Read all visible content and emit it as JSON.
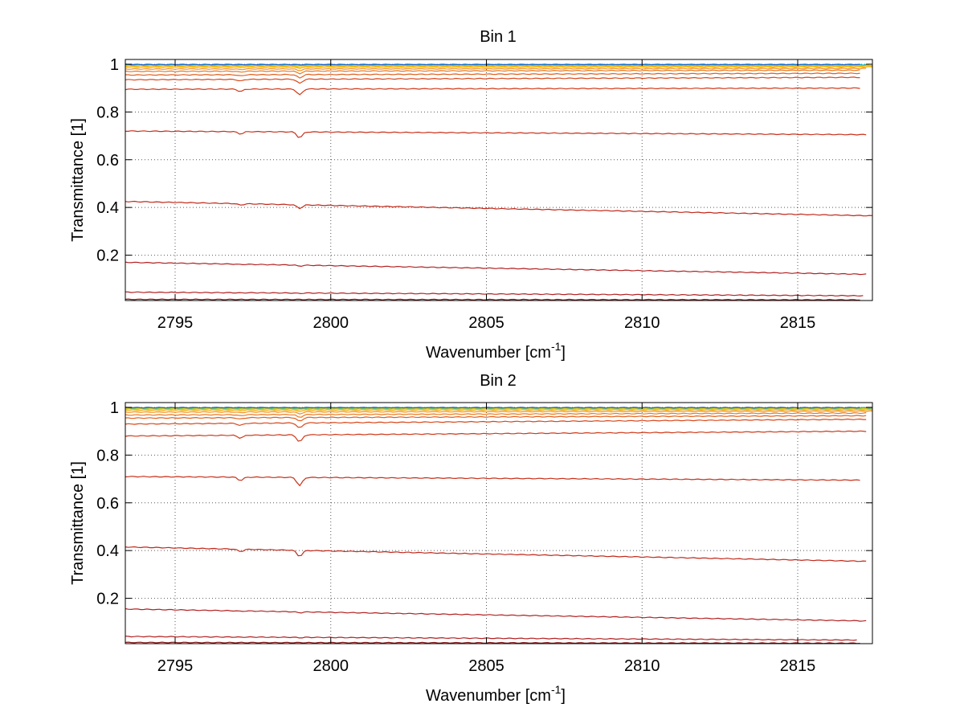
{
  "chart_data": [
    {
      "type": "line",
      "title": "Bin 1",
      "xlabel": "Wavenumber [cm",
      "xlabel_sup": "-1",
      "xlabel_tail": "]",
      "ylabel": "Transmittance [1]",
      "xlim": [
        2793.4,
        2817.4
      ],
      "ylim": [
        0.01,
        1.02
      ],
      "xticks": [
        2795,
        2800,
        2805,
        2810,
        2815
      ],
      "xtick_labels": [
        "2795",
        "2800",
        "2805",
        "2810",
        "2815"
      ],
      "yticks": [
        0.2,
        0.4,
        0.6,
        0.8,
        1
      ],
      "ytick_labels": [
        "0.2",
        "0.4",
        "0.6",
        "0.8",
        "1"
      ],
      "grid": true,
      "series": [
        {
          "color": "#8b1a1a",
          "x_end": 2817.0,
          "start": 0.015,
          "end": 0.013,
          "dip": 0.0
        },
        {
          "color": "#b22222",
          "x_end": 2817.1,
          "start": 0.045,
          "end": 0.03,
          "dip": 0.002
        },
        {
          "color": "#b22222",
          "x_end": 2817.2,
          "start": 0.17,
          "end": 0.12,
          "dip": 0.004
        },
        {
          "color": "#c0281a",
          "x_end": 2817.4,
          "start": 0.425,
          "end": 0.365,
          "dip": 0.015
        },
        {
          "color": "#c8301a",
          "x_end": 2817.2,
          "start": 0.72,
          "end": 0.705,
          "dip": 0.025
        },
        {
          "color": "#d03a1a",
          "x_end": 2817.0,
          "start": 0.895,
          "end": 0.9,
          "dip": 0.025
        },
        {
          "color": "#d8481c",
          "x_end": 2817.0,
          "start": 0.935,
          "end": 0.945,
          "dip": 0.018
        },
        {
          "color": "#e0601e",
          "x_end": 2817.0,
          "start": 0.955,
          "end": 0.962,
          "dip": 0.014
        },
        {
          "color": "#e87a20",
          "x_end": 2817.0,
          "start": 0.97,
          "end": 0.975,
          "dip": 0.01
        },
        {
          "color": "#f09020",
          "x_end": 2817.2,
          "start": 0.98,
          "end": 0.982,
          "dip": 0.007
        },
        {
          "color": "#f5a800",
          "x_end": 2817.4,
          "start": 0.988,
          "end": 0.989,
          "dip": 0.004
        },
        {
          "color": "#f7c000",
          "x_end": 2817.4,
          "start": 0.993,
          "end": 0.993,
          "dip": 0.003
        },
        {
          "color": "#c8d400",
          "x_end": 2817.4,
          "start": 0.996,
          "end": 0.996,
          "dip": 0.002
        },
        {
          "color": "#00b4d0",
          "x_end": 2817.2,
          "start": 0.998,
          "end": 0.998,
          "dip": 0.001
        },
        {
          "color": "#2060c8",
          "x_end": 2817.0,
          "start": 0.999,
          "end": 0.999,
          "dip": 0.001
        }
      ]
    },
    {
      "type": "line",
      "title": "Bin 2",
      "xlabel": "Wavenumber [cm",
      "xlabel_sup": "-1",
      "xlabel_tail": "]",
      "ylabel": "Transmittance [1]",
      "xlim": [
        2793.4,
        2817.4
      ],
      "ylim": [
        0.01,
        1.02
      ],
      "xticks": [
        2795,
        2800,
        2805,
        2810,
        2815
      ],
      "xtick_labels": [
        "2795",
        "2800",
        "2805",
        "2810",
        "2815"
      ],
      "yticks": [
        0.2,
        0.4,
        0.6,
        0.8,
        1
      ],
      "ytick_labels": [
        "0.2",
        "0.4",
        "0.6",
        "0.8",
        "1"
      ],
      "grid": true,
      "series": [
        {
          "color": "#8b1a1a",
          "x_end": 2817.0,
          "start": 0.015,
          "end": 0.012,
          "dip": 0.0
        },
        {
          "color": "#b22222",
          "x_end": 2816.9,
          "start": 0.04,
          "end": 0.025,
          "dip": 0.002
        },
        {
          "color": "#b22222",
          "x_end": 2817.2,
          "start": 0.155,
          "end": 0.105,
          "dip": 0.004
        },
        {
          "color": "#c0281a",
          "x_end": 2817.2,
          "start": 0.415,
          "end": 0.355,
          "dip": 0.025
        },
        {
          "color": "#c8301a",
          "x_end": 2817.0,
          "start": 0.71,
          "end": 0.695,
          "dip": 0.035
        },
        {
          "color": "#d03a1a",
          "x_end": 2817.2,
          "start": 0.88,
          "end": 0.9,
          "dip": 0.03
        },
        {
          "color": "#d8481c",
          "x_end": 2817.2,
          "start": 0.93,
          "end": 0.95,
          "dip": 0.022
        },
        {
          "color": "#e0601e",
          "x_end": 2817.2,
          "start": 0.955,
          "end": 0.965,
          "dip": 0.016
        },
        {
          "color": "#e87a20",
          "x_end": 2817.2,
          "start": 0.968,
          "end": 0.976,
          "dip": 0.012
        },
        {
          "color": "#f09020",
          "x_end": 2817.4,
          "start": 0.98,
          "end": 0.984,
          "dip": 0.008
        },
        {
          "color": "#f5a800",
          "x_end": 2817.4,
          "start": 0.988,
          "end": 0.99,
          "dip": 0.005
        },
        {
          "color": "#f7c000",
          "x_end": 2817.4,
          "start": 0.993,
          "end": 0.994,
          "dip": 0.003
        },
        {
          "color": "#c8d400",
          "x_end": 2817.4,
          "start": 0.996,
          "end": 0.997,
          "dip": 0.002
        },
        {
          "color": "#00b4d0",
          "x_end": 2817.4,
          "start": 0.998,
          "end": 0.998,
          "dip": 0.001
        },
        {
          "color": "#2060c8",
          "x_end": 2817.0,
          "start": 0.999,
          "end": 0.999,
          "dip": 0.001
        }
      ]
    }
  ]
}
